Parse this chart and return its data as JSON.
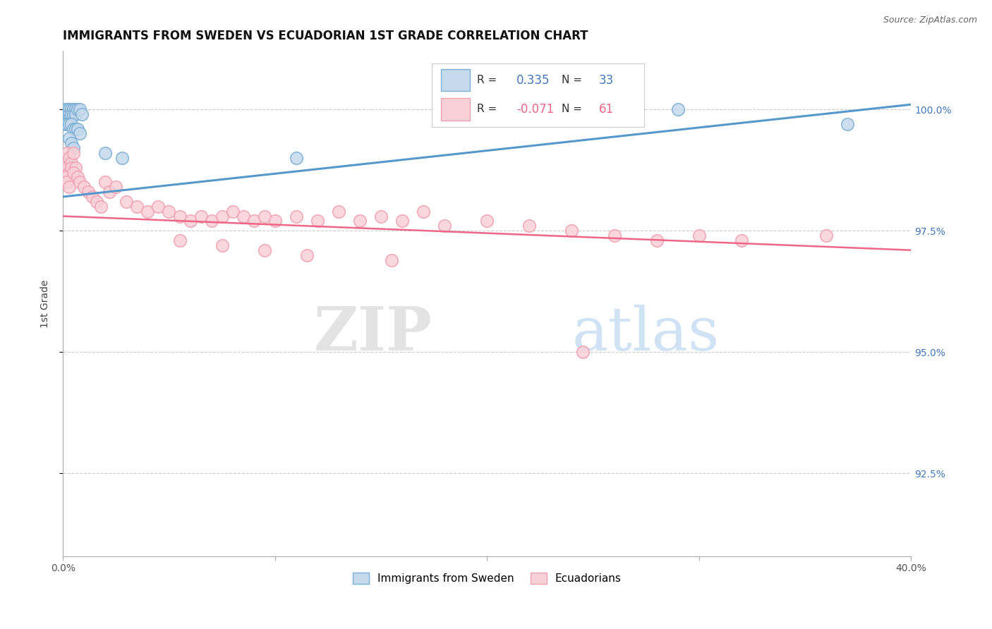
{
  "title": "IMMIGRANTS FROM SWEDEN VS ECUADORIAN 1ST GRADE CORRELATION CHART",
  "source_text": "Source: ZipAtlas.com",
  "ylabel": "1st Grade",
  "xlim": [
    0.0,
    0.4
  ],
  "ylim": [
    0.908,
    1.012
  ],
  "xtick_vals": [
    0.0,
    0.1,
    0.2,
    0.3,
    0.4
  ],
  "xtick_labels": [
    "0.0%",
    "",
    "",
    "",
    "40.0%"
  ],
  "ytick_vals": [
    0.925,
    0.95,
    0.975,
    1.0
  ],
  "ytick_labels": [
    "92.5%",
    "95.0%",
    "97.5%",
    "100.0%"
  ],
  "blue_color": "#7BAFD4",
  "blue_fill": "#C5D9ED",
  "pink_color": "#F0A0B0",
  "pink_fill": "#F8D0D8",
  "blue_R": "0.335",
  "blue_N": "33",
  "pink_R": "-0.071",
  "pink_N": "61",
  "blue_line_x": [
    0.0,
    0.4
  ],
  "blue_line_y": [
    0.982,
    1.001
  ],
  "pink_line_x": [
    0.0,
    0.4
  ],
  "pink_line_y": [
    0.978,
    0.971
  ],
  "watermark_zip": "ZIP",
  "watermark_atlas": "atlas",
  "title_fontsize": 12,
  "axis_label_fontsize": 10,
  "tick_fontsize": 10,
  "legend_entry_color_blue": "#4477BB",
  "legend_entry_color_pink": "#EE6688",
  "legend_label_color": "#333333",
  "right_tick_color": "#4477BB"
}
